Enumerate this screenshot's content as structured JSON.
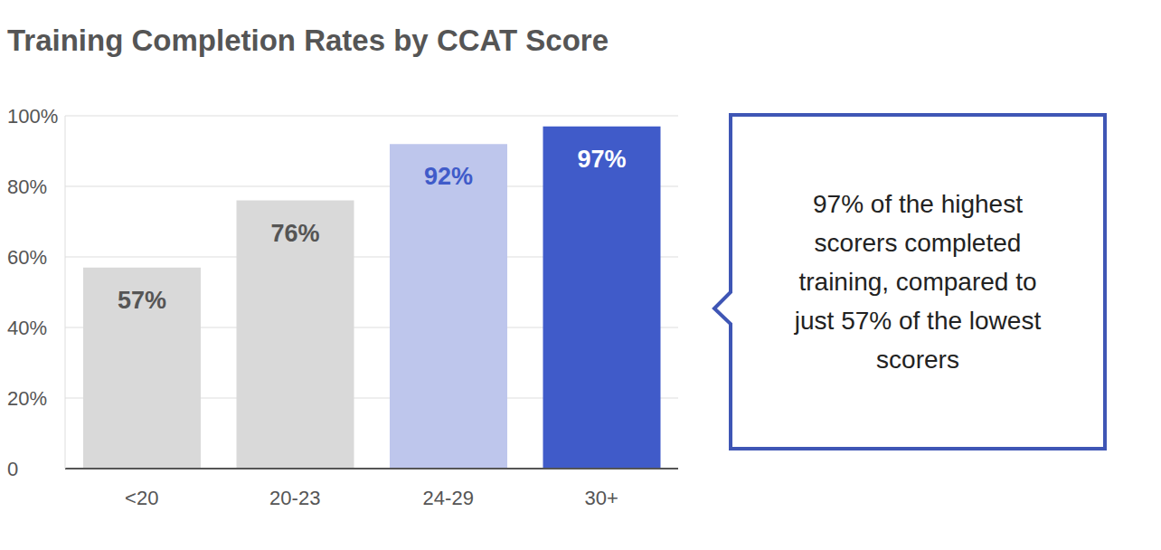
{
  "chart_data": {
    "type": "bar",
    "title": "Training Completion Rates by CCAT Score",
    "categories": [
      "<20",
      "20-23",
      "24-29",
      "30+"
    ],
    "values": [
      57,
      76,
      92,
      97
    ],
    "value_labels": [
      "57%",
      "76%",
      "92%",
      "97%"
    ],
    "colors": [
      "#d9d9d9",
      "#d9d9d9",
      "#bec6ec",
      "#405bc9"
    ],
    "ylim": [
      0,
      100
    ],
    "yticks": [
      0,
      {
        "value": 20,
        "label": "20%"
      },
      {
        "value": 40,
        "label": "40%"
      },
      {
        "value": 60,
        "label": "60%"
      },
      {
        "value": 80,
        "label": "80%"
      },
      {
        "value": 100,
        "label": "100%"
      }
    ],
    "grid": true,
    "data_labels": true,
    "annotation": "97% of the highest scorers completed training, compared to just 57% of the lowest scorers"
  }
}
